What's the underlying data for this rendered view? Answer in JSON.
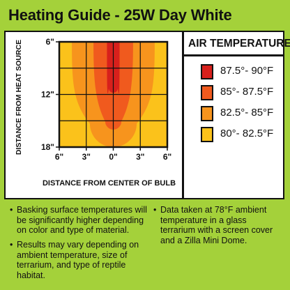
{
  "title": "Heating Guide - 25W Day White",
  "legend": {
    "title": "AIR TEMPERATURE",
    "items": [
      {
        "label": "87.5°- 90°F",
        "color": "#d8201c"
      },
      {
        "label": "85°- 87.5°F",
        "color": "#f05a1e"
      },
      {
        "label": "82.5°- 85°F",
        "color": "#f7941d"
      },
      {
        "label": "80°- 82.5°F",
        "color": "#fbc21b"
      }
    ]
  },
  "chart_data": {
    "type": "heatmap",
    "xlabel": "DISTANCE FROM CENTER OF BULB",
    "ylabel": "DISTANCE FROM HEAT SOURCE",
    "x_ticks": [
      "6\"",
      "3\"",
      "0\"",
      "3\"",
      "6\""
    ],
    "x_values": [
      -6,
      -3,
      0,
      3,
      6
    ],
    "y_ticks": [
      "6\"",
      "12\"",
      "18\""
    ],
    "y_values": [
      6,
      12,
      18
    ],
    "xlim": [
      -6,
      6
    ],
    "ylim": [
      6,
      18
    ],
    "grid": true,
    "zones": [
      {
        "range": "80°- 82.5°F",
        "color": "#fbc21b",
        "half_width": [
          6,
          6,
          6
        ],
        "depth": 18
      },
      {
        "range": "82.5°- 85°F",
        "color": "#f7941d",
        "half_width": [
          4.6,
          4.4,
          2.6
        ],
        "depth": 18
      },
      {
        "range": "85°- 87.5°F",
        "color": "#f05a1e",
        "half_width": [
          2.2,
          1.9,
          0.9
        ],
        "depth": 16
      },
      {
        "range": "87.5°- 90°F",
        "color": "#d8201c",
        "half_width": [
          0.7,
          0.7,
          0.5
        ],
        "depth": 11.8
      }
    ]
  },
  "notes": [
    "Basking surface temperatures will be significantly higher depending on color and type of material.",
    "Results may vary depending on ambient temperature, size of terrarium, and type of reptile habitat.",
    "Data taken at 78°F ambient temperature in a glass terrarium with a screen cover and a Zilla Mini Dome."
  ]
}
